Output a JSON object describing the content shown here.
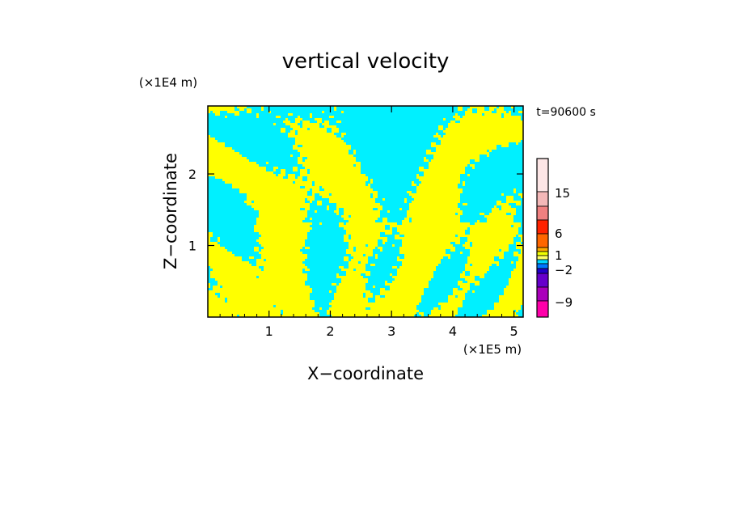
{
  "chart_data": {
    "type": "heatmap",
    "title": "vertical velocity",
    "xlabel": "X−coordinate",
    "ylabel": "Z−coordinate",
    "x_unit": "(×1E5 m)",
    "y_unit": "(×1E4 m)",
    "time_label": "t=90600 s",
    "xlim": [
      0,
      5.15
    ],
    "ylim": [
      0,
      2.95
    ],
    "x_ticks": [
      "1",
      "2",
      "3",
      "4",
      "5"
    ],
    "x_tick_values": [
      1,
      2,
      3,
      4,
      5
    ],
    "y_ticks": [
      "1",
      "2"
    ],
    "y_tick_values": [
      1,
      2
    ],
    "grid": false,
    "colorbar": {
      "tick_labels": [
        "15",
        "6",
        "1",
        "−2",
        "−9"
      ],
      "tick_values": [
        15,
        6,
        1,
        -2,
        -9
      ],
      "colors": [
        "#ff00aa",
        "#dd0099",
        "#9900bb",
        "#6600cc",
        "#2200cc",
        "#0077ff",
        "#00d8ff",
        "#f0ff00",
        "#ffaa00",
        "#ff6600",
        "#ff2200",
        "#ee4444",
        "#f08080",
        "#f4b8b8",
        "#fde6e6"
      ]
    },
    "dominant_values": [
      {
        "color": "#00f0ff",
        "range": "slightly negative"
      },
      {
        "color": "#ffff00",
        "range": "slightly positive"
      }
    ]
  }
}
